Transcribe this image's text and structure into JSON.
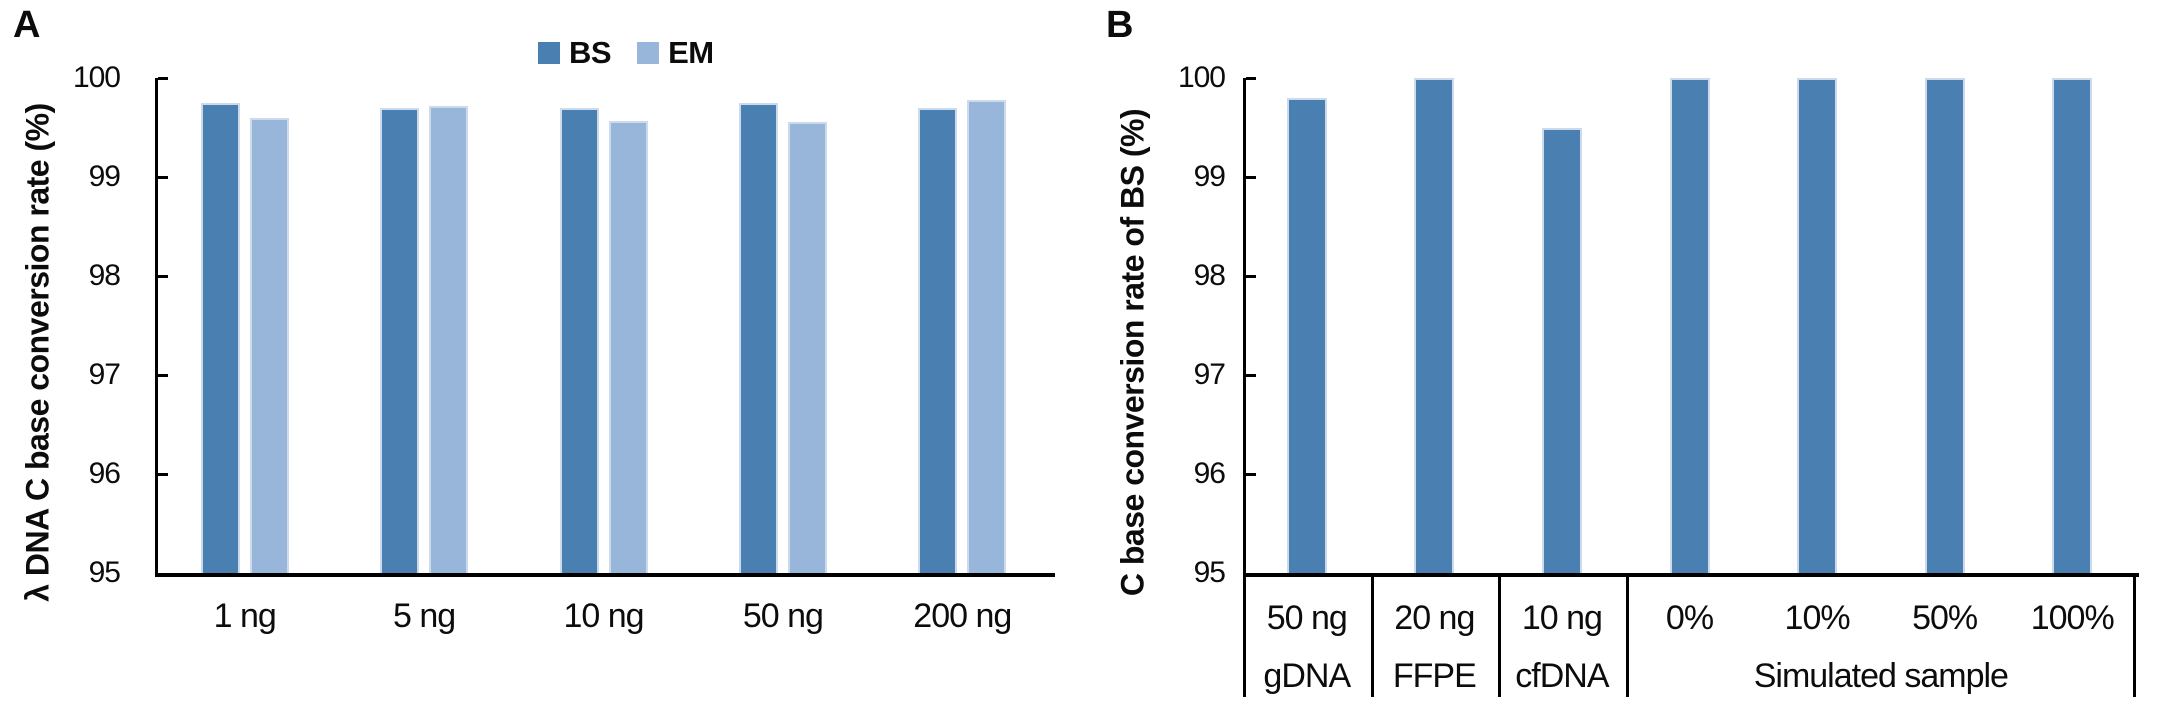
{
  "panels": [
    {
      "letter": "A",
      "y_axis_title": "λ DNA C base conversion rate (%)"
    },
    {
      "letter": "B",
      "y_axis_title": "C base conversion rate of BS (%)"
    }
  ],
  "legend": {
    "items": [
      {
        "label": "BS",
        "color": "#4a7fb2"
      },
      {
        "label": "EM",
        "color": "#98b6da"
      }
    ]
  },
  "colors": {
    "bar_dark": "#4a7fb2",
    "bar_light": "#98b6da",
    "bar_edge": "#ccdaeb",
    "axis": "#000000"
  },
  "chart_data": [
    {
      "type": "bar",
      "panel": "A",
      "title": "",
      "xlabel": "",
      "ylabel": "λ DNA C base conversion rate (%)",
      "ylim": [
        95,
        100
      ],
      "yticks": [
        95,
        96,
        97,
        98,
        99,
        100
      ],
      "grid": false,
      "legend_position": "top-center",
      "categories": [
        "1 ng",
        "5 ng",
        "10 ng",
        "50 ng",
        "200 ng"
      ],
      "series": [
        {
          "name": "BS",
          "color": "#4a7fb2",
          "values": [
            99.75,
            99.7,
            99.7,
            99.75,
            99.7
          ]
        },
        {
          "name": "EM",
          "color": "#98b6da",
          "values": [
            99.6,
            99.72,
            99.57,
            99.56,
            99.78
          ]
        }
      ]
    },
    {
      "type": "bar",
      "panel": "B",
      "title": "",
      "xlabel": "",
      "ylabel": "C base conversion rate of BS (%)",
      "ylim": [
        95,
        100
      ],
      "yticks": [
        95,
        96,
        97,
        98,
        99,
        100
      ],
      "grid": false,
      "legend_position": "none",
      "categories": [
        "50 ng",
        "20 ng",
        "10 ng",
        "0%",
        "10%",
        "50%",
        "100%"
      ],
      "series": [
        {
          "name": "BS",
          "color": "#4a7fb2",
          "values": [
            99.8,
            100,
            99.5,
            100,
            100,
            100,
            100
          ]
        }
      ],
      "category_groups": [
        {
          "label": "gDNA",
          "span": 1
        },
        {
          "label": "FFPE",
          "span": 1
        },
        {
          "label": "cfDNA",
          "span": 1
        },
        {
          "label": "Simulated sample",
          "span": 4
        }
      ]
    }
  ]
}
